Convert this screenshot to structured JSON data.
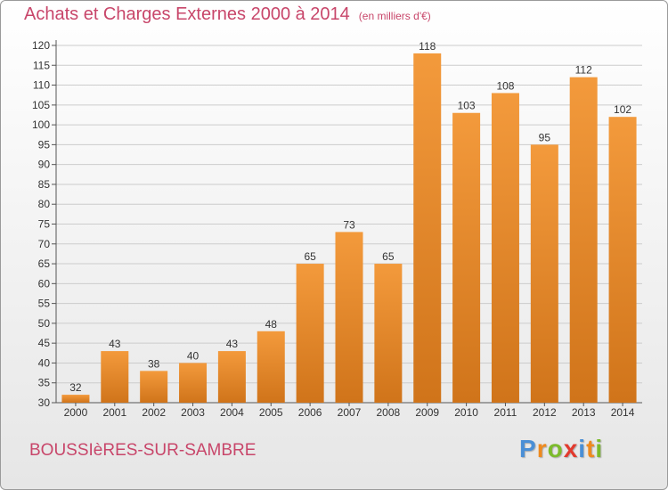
{
  "title": "Achats et Charges Externes 2000 à 2014",
  "unit": "(en milliers d'€)",
  "commune": "BOUSSIèRES-SUR-SAMBRE",
  "logo": {
    "letters": [
      "P",
      "r",
      "o",
      "x",
      "i",
      "t",
      "i"
    ],
    "colors": [
      "#4a8fd6",
      "#ef8a1e",
      "#7cbb2c",
      "#e23a2e",
      "#4a8fd6",
      "#ef8a1e",
      "#7cbb2c"
    ]
  },
  "colors": {
    "bar": "#f39a3c",
    "bar_dark": "#d0741a",
    "grid": "#cccccc",
    "text": "#333333"
  },
  "chart_data": {
    "type": "bar",
    "categories": [
      "2000",
      "2001",
      "2002",
      "2003",
      "2004",
      "2005",
      "2006",
      "2007",
      "2008",
      "2009",
      "2010",
      "2011",
      "2012",
      "2013",
      "2014"
    ],
    "values": [
      32,
      43,
      38,
      40,
      43,
      48,
      65,
      73,
      65,
      118,
      103,
      108,
      95,
      112,
      102
    ],
    "ylim": [
      30,
      120
    ],
    "yticks": [
      30,
      35,
      40,
      45,
      50,
      55,
      60,
      65,
      70,
      75,
      80,
      85,
      90,
      95,
      100,
      105,
      110,
      115,
      120
    ],
    "grid": true,
    "xlabel": "",
    "ylabel": ""
  }
}
